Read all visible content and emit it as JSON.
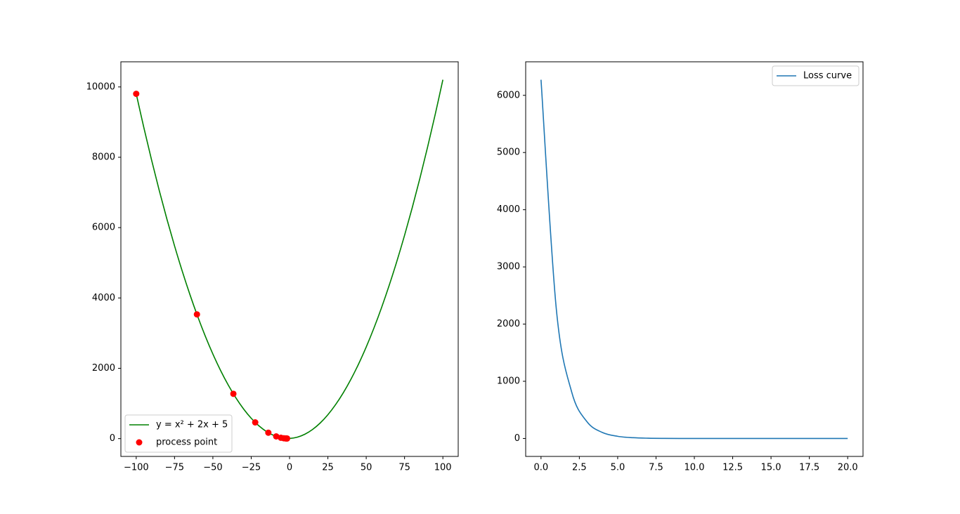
{
  "chart_data": [
    {
      "type": "line",
      "xlim": [
        -110,
        110
      ],
      "ylim": [
        -506,
        10715
      ],
      "xticks": [
        {
          "value": -100,
          "label": "−100"
        },
        {
          "value": -75,
          "label": "−75"
        },
        {
          "value": -50,
          "label": "−50"
        },
        {
          "value": -25,
          "label": "−25"
        },
        0,
        25,
        50,
        75,
        100
      ],
      "yticks": [
        0,
        2000,
        4000,
        6000,
        8000,
        10000
      ],
      "legend": "lower left",
      "series": [
        {
          "name": "y = x² + 2x + 5",
          "color": "#008000",
          "type": "line",
          "x": [
            -100,
            -95,
            -90,
            -85,
            -80,
            -75,
            -70,
            -65,
            -60,
            -55,
            -50,
            -45,
            -40,
            -35,
            -30,
            -25,
            -20,
            -15,
            -10,
            -5,
            0,
            5,
            10,
            15,
            20,
            25,
            30,
            35,
            40,
            45,
            50,
            55,
            60,
            65,
            70,
            75,
            80,
            85,
            90,
            95,
            100
          ],
          "values": [
            9805,
            8840,
            7925,
            7060,
            6245,
            5480,
            4765,
            4100,
            3485,
            2920,
            2405,
            1940,
            1525,
            1160,
            845,
            580,
            365,
            200,
            85,
            20,
            5,
            40,
            125,
            260,
            445,
            680,
            965,
            1300,
            1685,
            2120,
            2605,
            3140,
            3725,
            4360,
            5045,
            5780,
            6565,
            7400,
            8285,
            9220,
            10205
          ]
        },
        {
          "name": "process point",
          "color": "#ff0000",
          "type": "scatter",
          "x": [
            -100,
            -60.4,
            -36.64,
            -22.384,
            -13.83,
            -8.698,
            -5.619,
            -3.771,
            -2.663,
            -1.998,
            -1.599
          ],
          "values": [
            9805,
            3532.36,
            1274.21,
            461.27,
            168.61,
            63.25,
            25.33,
            11.68,
            6.77,
            5.0,
            4.36
          ]
        }
      ]
    },
    {
      "type": "line",
      "xlim": [
        -1,
        21
      ],
      "ylim": [
        -313.6,
        6586.3
      ],
      "xticks": [
        {
          "value": 0,
          "label": "0.0"
        },
        {
          "value": 2.5,
          "label": "2.5"
        },
        {
          "value": 5,
          "label": "5.0"
        },
        {
          "value": 7.5,
          "label": "7.5"
        },
        {
          "value": 10,
          "label": "10.0"
        },
        {
          "value": 12.5,
          "label": "12.5"
        },
        {
          "value": 15,
          "label": "15.0"
        },
        {
          "value": 17.5,
          "label": "17.5"
        },
        {
          "value": 20,
          "label": "20.0"
        }
      ],
      "yticks": [
        0,
        1000,
        2000,
        3000,
        4000,
        5000,
        6000
      ],
      "legend": "upper right",
      "series": [
        {
          "name": "Loss curve",
          "color": "#1f77b4",
          "type": "line",
          "x": [
            0,
            1,
            2,
            3,
            4,
            5,
            6,
            7,
            8,
            9,
            10,
            11,
            12,
            13,
            14,
            15,
            16,
            17,
            18,
            19,
            20
          ],
          "values": [
            6272.64,
            2258.15,
            812.93,
            292.65,
            105.35,
            37.93,
            13.65,
            4.92,
            1.77,
            0.64,
            0.23,
            0.08,
            0.03,
            0.01,
            0,
            0,
            0,
            0,
            0,
            0,
            0
          ]
        }
      ]
    }
  ]
}
